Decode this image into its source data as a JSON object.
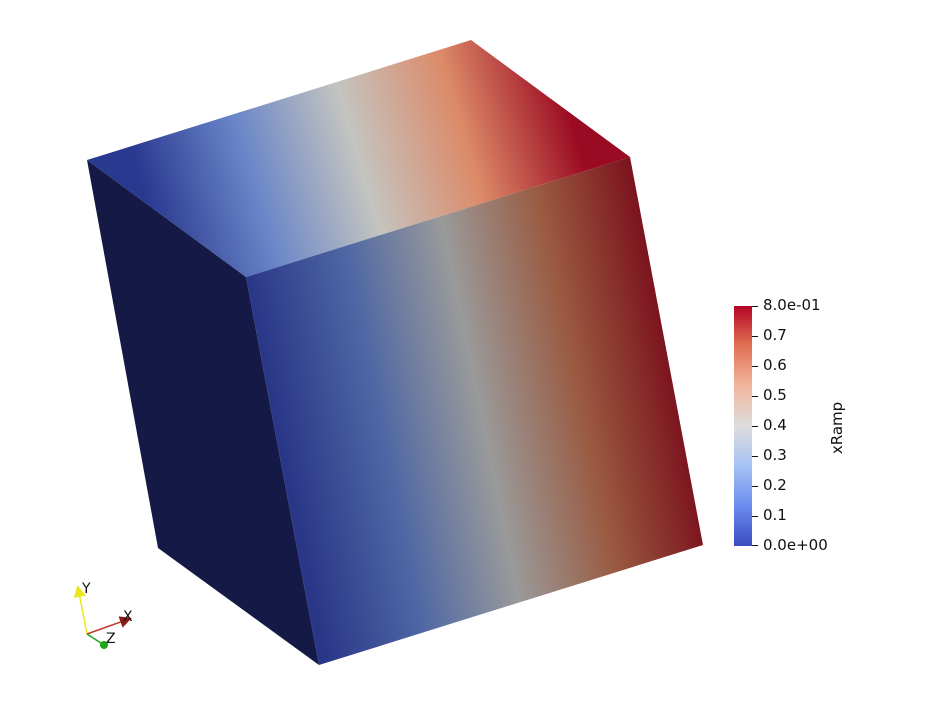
{
  "colorbar": {
    "title": "xRamp",
    "tick_labels": [
      "8.0e-01",
      "0.7",
      "0.6",
      "0.5",
      "0.4",
      "0.3",
      "0.2",
      "0.1",
      "0.0e+00"
    ],
    "tick_values": [
      0.8,
      0.7,
      0.6,
      0.5,
      0.4,
      0.3,
      0.2,
      0.1,
      0.0
    ],
    "range": [
      0.0,
      0.8
    ],
    "colormap": [
      "#3b4cc0",
      "#6b8ef0",
      "#a9c4f4",
      "#dddddd",
      "#f2b59c",
      "#e06e51",
      "#b40426"
    ]
  },
  "orientation_axes": {
    "x_label": "X",
    "y_label": "Y",
    "z_label": "Z",
    "x_color": "#c0392b",
    "y_color": "#e8e81a",
    "z_color": "#1aa81a"
  },
  "scene": {
    "object": "cube",
    "colored_by": "xRamp",
    "shadow_face_color": "#141a45",
    "background": "#ffffff"
  }
}
